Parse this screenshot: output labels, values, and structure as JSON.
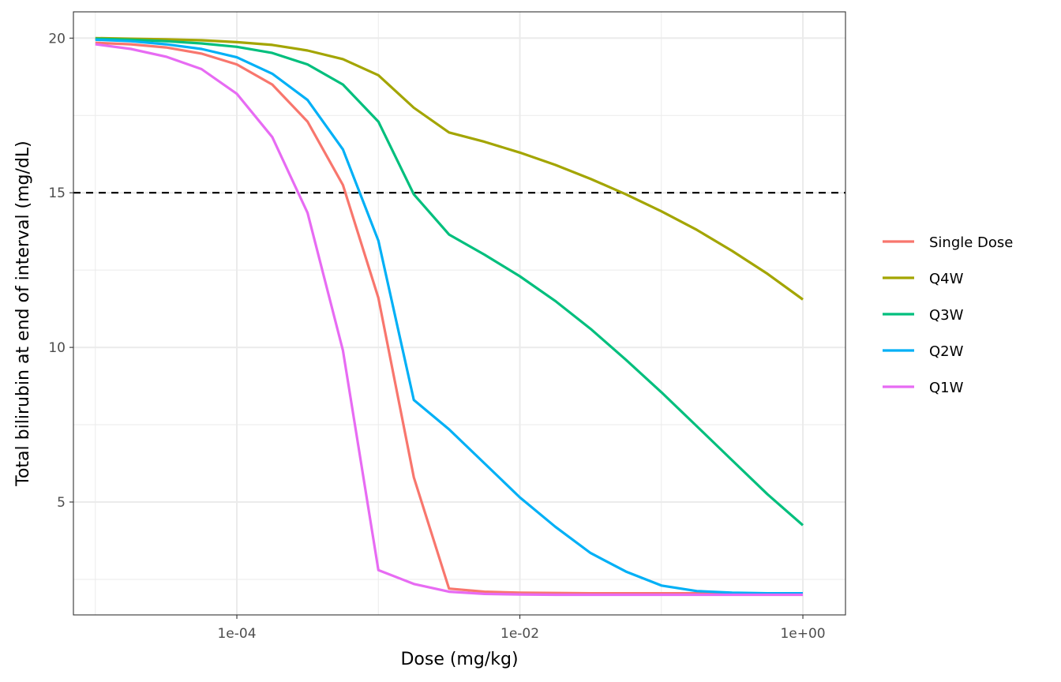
{
  "chart_data": {
    "type": "line",
    "xlabel": "Dose (mg/kg)",
    "ylabel": "Total bilirubin at end of interval (mg/dL)",
    "x_scale": "log10",
    "xlim": [
      7e-06,
      2.0
    ],
    "ylim": [
      1.35,
      20.85
    ],
    "x_ticks": [
      {
        "value": 0.0001,
        "label": "1e-04"
      },
      {
        "value": 0.01,
        "label": "1e-02"
      },
      {
        "value": 1,
        "label": "1e+00"
      }
    ],
    "y_ticks": [
      {
        "value": 5,
        "label": "5"
      },
      {
        "value": 10,
        "label": "10"
      },
      {
        "value": 15,
        "label": "15"
      },
      {
        "value": 20,
        "label": "20"
      }
    ],
    "grid": true,
    "legend_position": "right",
    "reference_line": {
      "y": 15,
      "style": "dashed",
      "color": "#000000"
    },
    "x": [
      1e-05,
      1.78e-05,
      3.16e-05,
      5.62e-05,
      0.0001,
      0.000178,
      0.000316,
      0.000562,
      0.001,
      0.00178,
      0.00316,
      0.00562,
      0.01,
      0.0178,
      0.0316,
      0.0562,
      0.1,
      0.178,
      0.316,
      0.562,
      1
    ],
    "series": [
      {
        "name": "Single Dose",
        "color": "#F8766D",
        "values": [
          19.85,
          19.8,
          19.7,
          19.5,
          19.15,
          18.5,
          17.3,
          15.25,
          11.6,
          5.8,
          2.2,
          2.1,
          2.07,
          2.06,
          2.05,
          2.05,
          2.05,
          2.05,
          2.05,
          2.05,
          2.05
        ]
      },
      {
        "name": "Q4W",
        "color": "#A3A500",
        "values": [
          20.0,
          19.98,
          19.96,
          19.93,
          19.87,
          19.78,
          19.6,
          19.32,
          18.8,
          17.75,
          16.95,
          16.65,
          16.3,
          15.9,
          15.45,
          14.95,
          14.4,
          13.8,
          13.12,
          12.38,
          11.55
        ]
      },
      {
        "name": "Q3W",
        "color": "#00BF7D",
        "values": [
          19.98,
          19.95,
          19.9,
          19.83,
          19.72,
          19.52,
          19.15,
          18.5,
          17.3,
          14.95,
          13.65,
          13.0,
          12.3,
          11.5,
          10.6,
          9.6,
          8.55,
          7.45,
          6.35,
          5.25,
          4.25
        ]
      },
      {
        "name": "Q2W",
        "color": "#00B0F6",
        "values": [
          19.95,
          19.9,
          19.8,
          19.65,
          19.38,
          18.85,
          18.0,
          16.4,
          13.45,
          8.3,
          7.35,
          6.25,
          5.15,
          4.2,
          3.35,
          2.75,
          2.3,
          2.12,
          2.07,
          2.05,
          2.05
        ]
      },
      {
        "name": "Q1W",
        "color": "#E76BF3",
        "values": [
          19.8,
          19.65,
          19.4,
          19.0,
          18.2,
          16.8,
          14.35,
          9.9,
          2.8,
          2.35,
          2.1,
          2.03,
          2.01,
          2.0,
          2.0,
          2.0,
          2.0,
          2.0,
          2.0,
          2.0,
          2.0
        ]
      }
    ]
  }
}
